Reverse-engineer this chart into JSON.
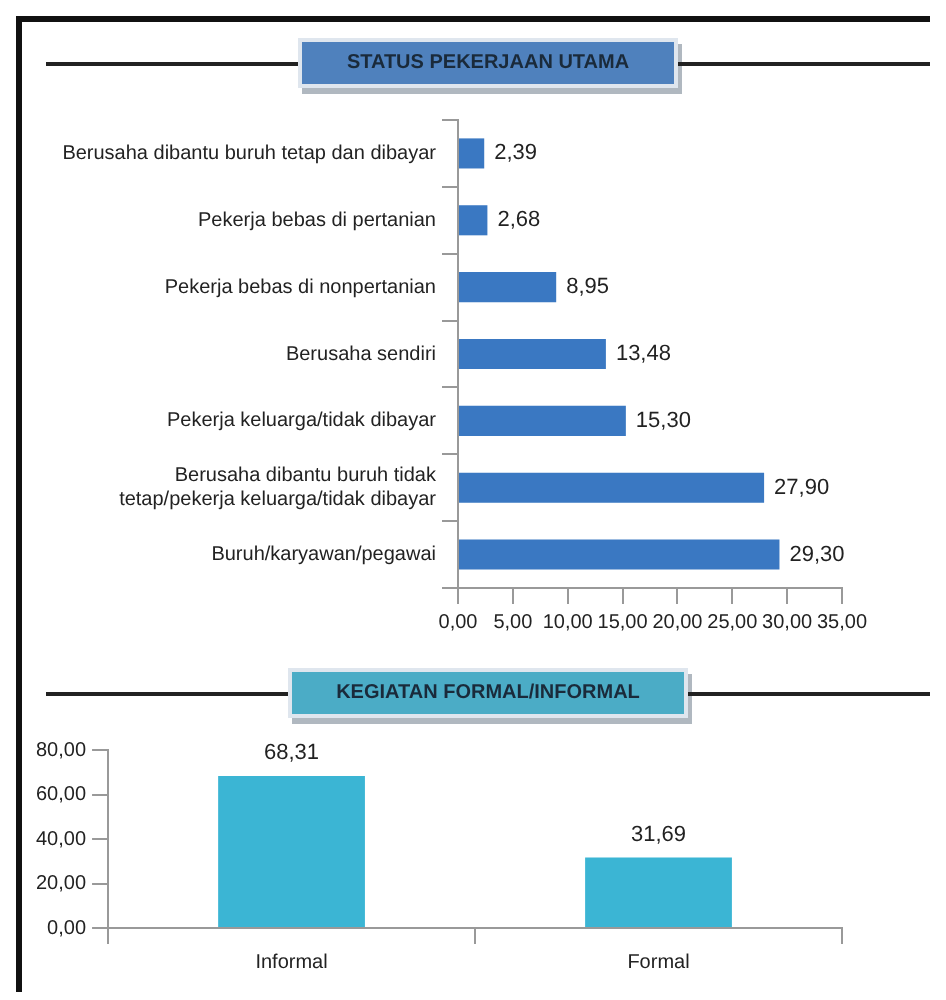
{
  "chart_data": [
    {
      "type": "bar",
      "title": "STATUS PEKERJAAN  UTAMA",
      "orientation": "horizontal",
      "categories": [
        "Berusaha dibantu buruh tetap dan dibayar",
        "Pekerja bebas di pertanian",
        "Pekerja bebas di nonpertanian",
        "Berusaha sendiri",
        "Pekerja keluarga/tidak dibayar",
        "Berusaha dibantu buruh tidak tetap/pekerja keluarga/tidak dibayar",
        "Buruh/karyawan/pegawai"
      ],
      "values": [
        2.39,
        2.68,
        8.95,
        13.48,
        15.3,
        27.9,
        29.3
      ],
      "value_labels": [
        "2,39",
        "2,68",
        "8,95",
        "13,48",
        "15,30",
        "27,90",
        "29,30"
      ],
      "color": "#3a78c2",
      "xlim": [
        0,
        35
      ],
      "xticks": [
        {
          "value": 0,
          "label": "0,00"
        },
        {
          "value": 5,
          "label": "5,00"
        },
        {
          "value": 10,
          "label": "10,00"
        },
        {
          "value": 15,
          "label": "15,00"
        },
        {
          "value": 20,
          "label": "20,00"
        },
        {
          "value": 25,
          "label": "25,00"
        },
        {
          "value": 30,
          "label": "30,00"
        },
        {
          "value": 35,
          "label": "35,00"
        }
      ],
      "grid": false,
      "legend": false
    },
    {
      "type": "bar",
      "title": "KEGIATAN FORMAL/INFORMAL",
      "categories": [
        "Informal",
        "Formal"
      ],
      "values": [
        68.31,
        31.69
      ],
      "value_labels": [
        "68,31",
        "31,69"
      ],
      "color": "#3bb5d4",
      "ylim": [
        0,
        80
      ],
      "yticks": [
        {
          "value": 0,
          "label": "0,00"
        },
        {
          "value": 20,
          "label": "20,00"
        },
        {
          "value": 40,
          "label": "40,00"
        },
        {
          "value": 60,
          "label": "60,00"
        },
        {
          "value": 80,
          "label": "80,00"
        }
      ],
      "grid": false,
      "legend": false
    }
  ]
}
